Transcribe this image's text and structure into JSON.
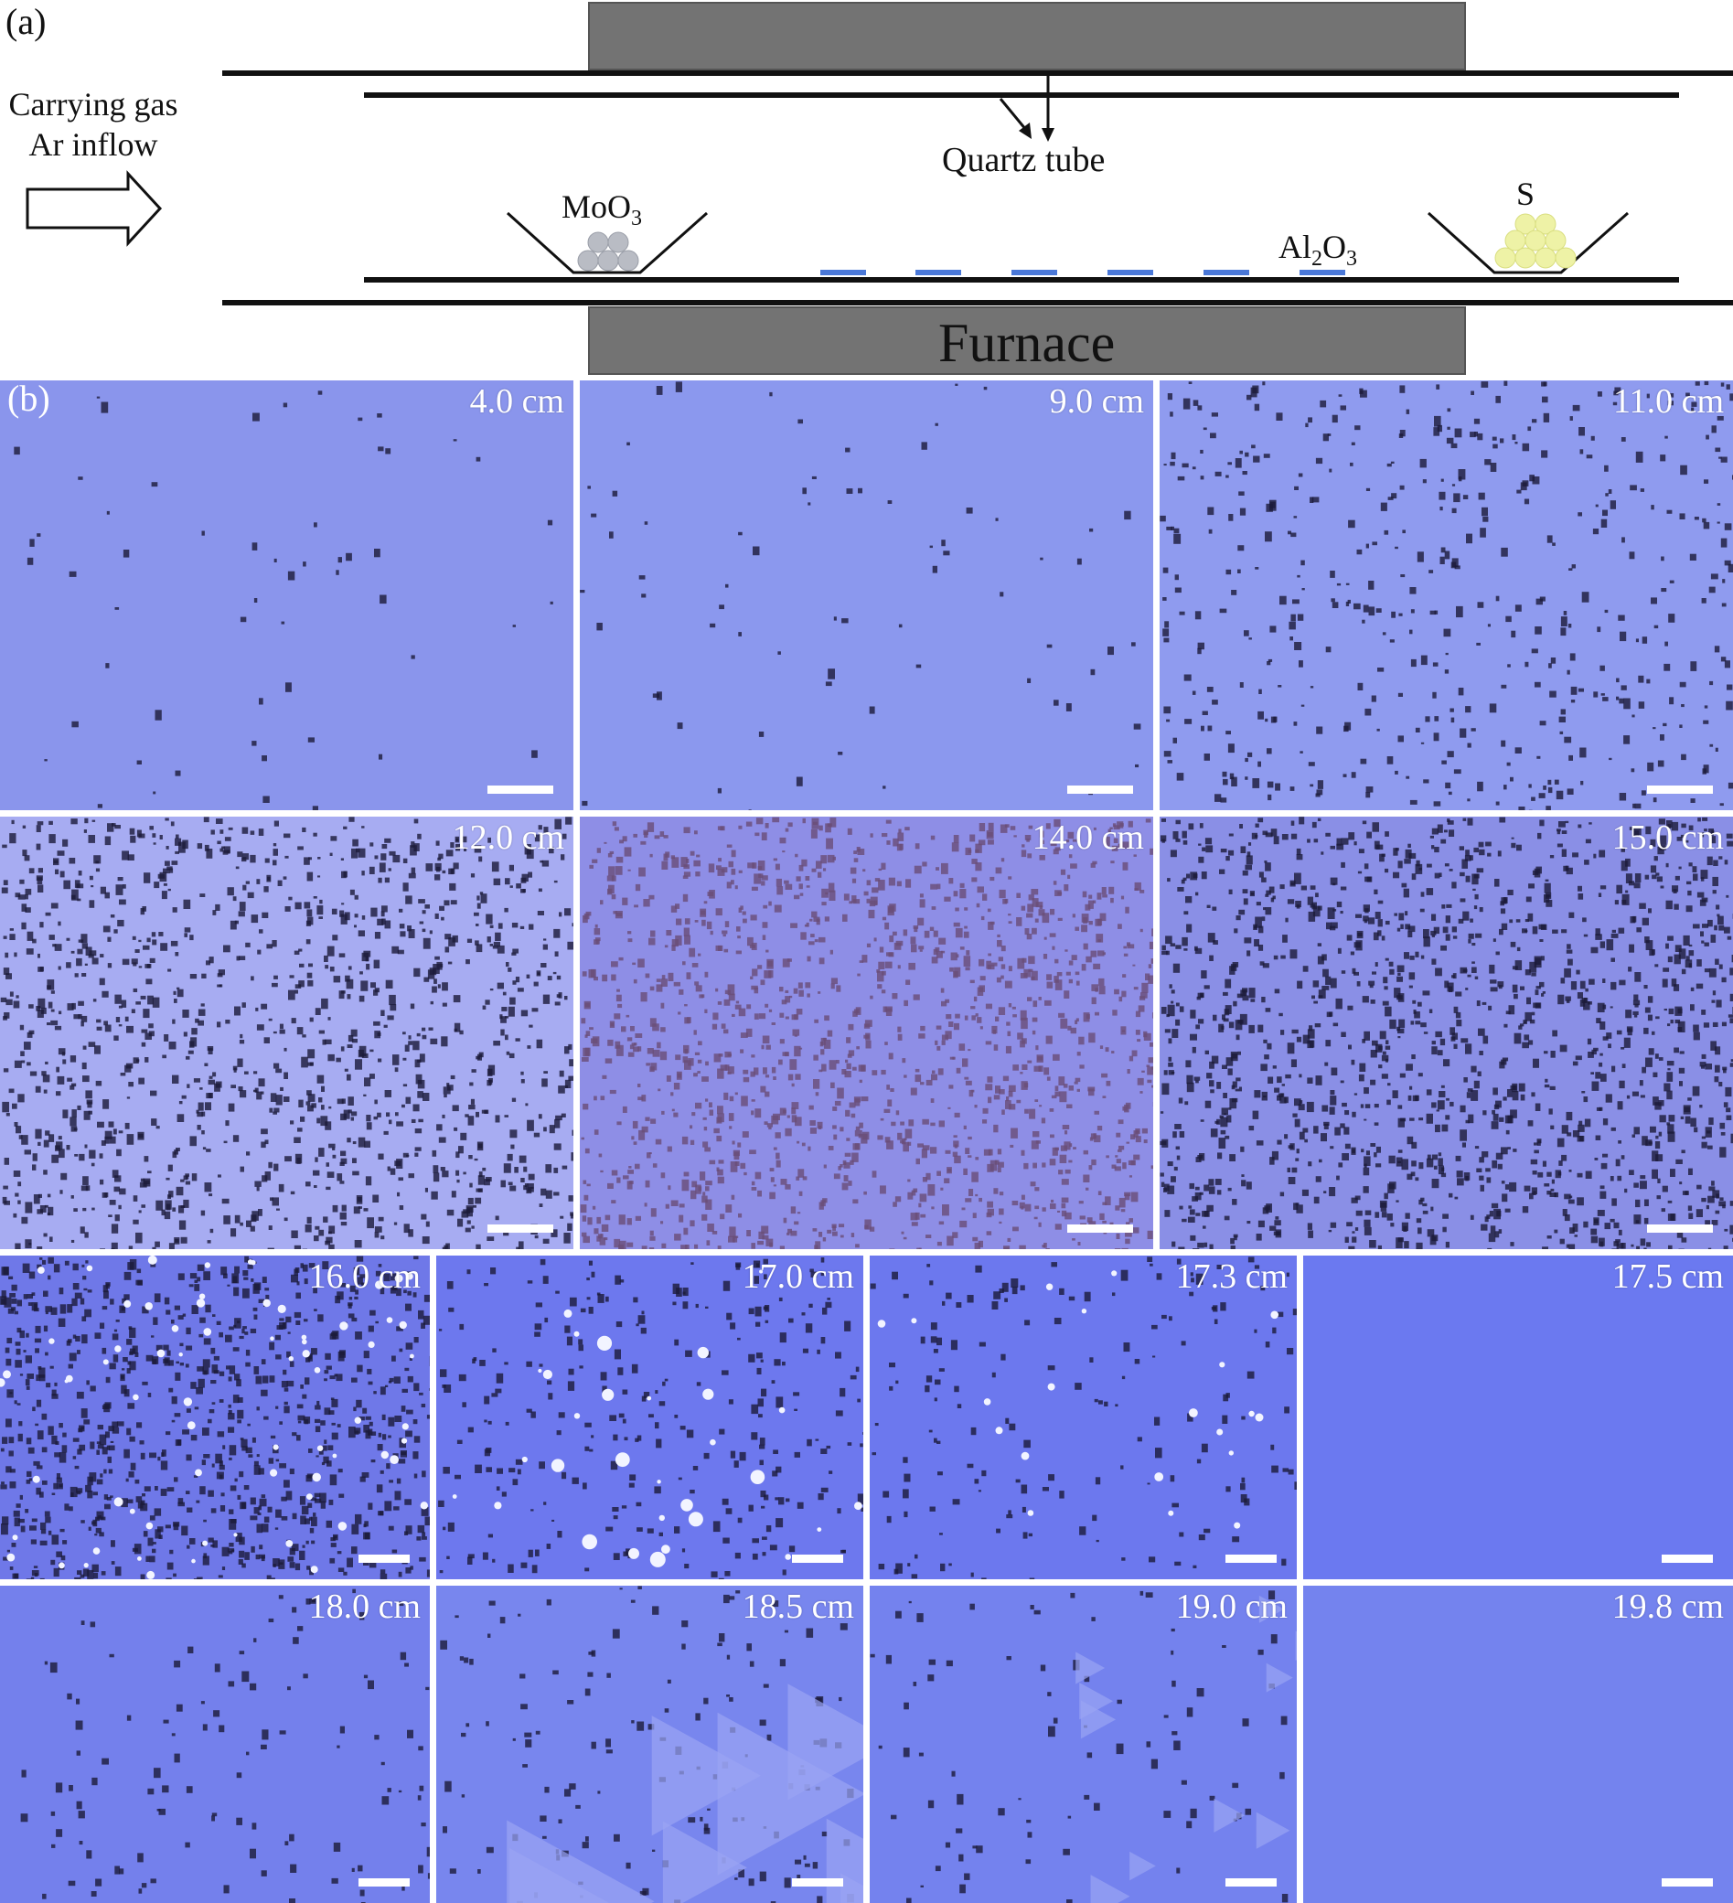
{
  "panel_a": {
    "label": "(a)",
    "gas_line1": "Carrying gas",
    "gas_line2": "Ar inflow",
    "quartz": "Quartz tube",
    "precursor_left": "MoO3",
    "precursor_right": "S",
    "substrate": "Al2O3",
    "furnace": "Furnace",
    "colors": {
      "furnace": "#737373",
      "substrate": "#4a78d8",
      "moo3": "#b9bcc4",
      "sulfur": "#eef2a6"
    }
  },
  "panel_b": {
    "label": "(b)",
    "images": [
      {
        "distance": "4.0 cm",
        "bg": "#8a95ec",
        "density": 0.04
      },
      {
        "distance": "9.0 cm",
        "bg": "#8b98ee",
        "density": 0.05
      },
      {
        "distance": "11.0 cm",
        "bg": "#8f9bef",
        "density": 0.35
      },
      {
        "distance": "12.0 cm",
        "bg": "#a7acf2",
        "density": 0.85
      },
      {
        "distance": "14.0 cm",
        "bg": "#8e8ee6",
        "density": 1.0
      },
      {
        "distance": "15.0 cm",
        "bg": "#8a8fe6",
        "density": 1.0
      },
      {
        "distance": "16.0 cm",
        "bg": "#6f78e8",
        "density": 0.6
      },
      {
        "distance": "17.0 cm",
        "bg": "#6d78ee",
        "density": 0.2
      },
      {
        "distance": "17.3 cm",
        "bg": "#6c78ee",
        "density": 0.12
      },
      {
        "distance": "17.5 cm",
        "bg": "#6b79f0",
        "density": 0.0
      },
      {
        "distance": "18.0 cm",
        "bg": "#7480ec",
        "density": 0.08
      },
      {
        "distance": "18.5 cm",
        "bg": "#7886ee",
        "density": 0.1
      },
      {
        "distance": "19.0 cm",
        "bg": "#7482ee",
        "density": 0.06
      },
      {
        "distance": "19.8 cm",
        "bg": "#7483ee",
        "density": 0.0
      }
    ]
  }
}
